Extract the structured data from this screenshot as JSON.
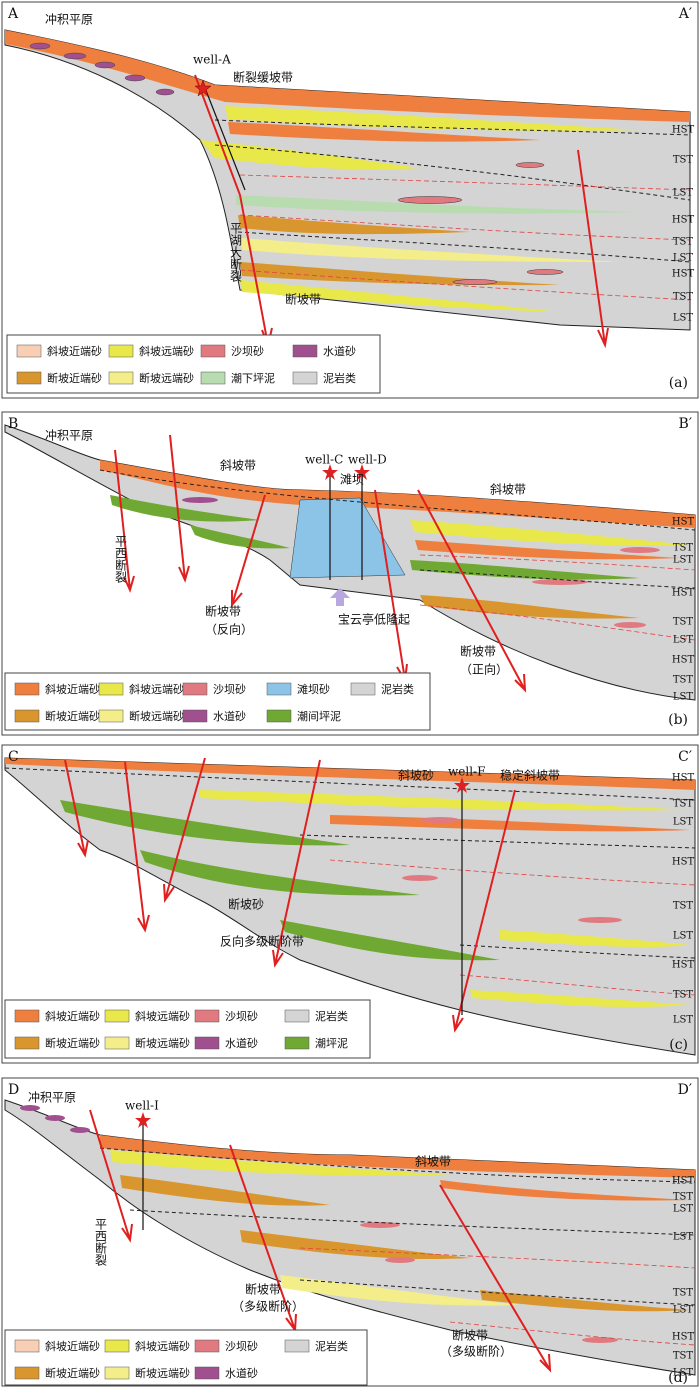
{
  "panels": [
    {
      "corner_left": "A",
      "corner_right": "A′",
      "tag": "(a)",
      "labels": [
        "冲积平原",
        "well-A",
        "断裂缓坡带",
        "平湖大断裂",
        "断坡带"
      ],
      "sequence": [
        "HST",
        "TST",
        "LST",
        "HST",
        "TST",
        "LST",
        "HST",
        "TST",
        "LST"
      ],
      "legend": [
        {
          "label": "斜坡近端砂",
          "color": "#f8cfb4"
        },
        {
          "label": "斜坡远端砂",
          "color": "#e8e84a"
        },
        {
          "label": "沙坝砂",
          "color": "#e07a80"
        },
        {
          "label": "水道砂",
          "color": "#a0508e"
        },
        {
          "label": "断坡近端砂",
          "color": "#d9962e"
        },
        {
          "label": "断坡远端砂",
          "color": "#f4ee8a"
        },
        {
          "label": "潮下坪泥",
          "color": "#b8dcb0"
        },
        {
          "label": "泥岩类",
          "color": "#d4d4d4"
        }
      ]
    },
    {
      "corner_left": "B",
      "corner_right": "B′",
      "tag": "(b)",
      "labels": [
        "冲积平原",
        "斜坡带",
        "well-C",
        "well-D",
        "滩坝",
        "斜坡带",
        "平西断裂",
        "断坡带",
        "（反向）",
        "宝云亭低隆起",
        "断坡带",
        "（正向）"
      ],
      "sequence": [
        "HST",
        "TST",
        "LST",
        "HST",
        "TST",
        "LST",
        "HST",
        "TST",
        "LST"
      ],
      "legend": [
        {
          "label": "斜坡近端砂",
          "color": "#ef7f3e"
        },
        {
          "label": "斜坡远端砂",
          "color": "#e8e84a"
        },
        {
          "label": "沙坝砂",
          "color": "#e07a80"
        },
        {
          "label": "滩坝砂",
          "color": "#8cc4e8"
        },
        {
          "label": "泥岩类",
          "color": "#d4d4d4"
        },
        {
          "label": "断坡近端砂",
          "color": "#d9962e"
        },
        {
          "label": "断坡远端砂",
          "color": "#f4ee8a"
        },
        {
          "label": "水道砂",
          "color": "#a0508e"
        },
        {
          "label": "潮间坪泥",
          "color": "#6fa832"
        }
      ]
    },
    {
      "corner_left": "C",
      "corner_right": "C′",
      "tag": "(c)",
      "labels": [
        "斜坡砂",
        "well-F",
        "稳定斜坡带",
        "断坡砂",
        "反向多级断阶带"
      ],
      "sequence": [
        "HST",
        "TST",
        "LST",
        "HST",
        "TST",
        "LST",
        "HST",
        "TST",
        "LST"
      ],
      "legend": [
        {
          "label": "斜坡近端砂",
          "color": "#ef7f3e"
        },
        {
          "label": "斜坡远端砂",
          "color": "#e8e84a"
        },
        {
          "label": "沙坝砂",
          "color": "#e07a80"
        },
        {
          "label": "泥岩类",
          "color": "#d4d4d4"
        },
        {
          "label": "断坡近端砂",
          "color": "#d9962e"
        },
        {
          "label": "断坡远端砂",
          "color": "#f4ee8a"
        },
        {
          "label": "水道砂",
          "color": "#a0508e"
        },
        {
          "label": "潮坪泥",
          "color": "#6fa832"
        }
      ]
    },
    {
      "corner_left": "D",
      "corner_right": "D′",
      "tag": "(d)",
      "labels": [
        "冲积平原",
        "well-I",
        "斜坡带",
        "平西断裂",
        "断坡带",
        "（多级断阶）",
        "断坡带",
        "（多级断阶）"
      ],
      "sequence": [
        "HST",
        "TST",
        "LST",
        "LST",
        "TST",
        "LST",
        "HST",
        "TST",
        "LST"
      ],
      "legend": [
        {
          "label": "斜坡近端砂",
          "color": "#f8cfb4"
        },
        {
          "label": "斜坡远端砂",
          "color": "#e8e84a"
        },
        {
          "label": "沙坝砂",
          "color": "#e07a80"
        },
        {
          "label": "泥岩类",
          "color": "#d4d4d4"
        },
        {
          "label": "断坡近端砂",
          "color": "#d9962e"
        },
        {
          "label": "断坡远端砂",
          "color": "#f4ee8a"
        },
        {
          "label": "水道砂",
          "color": "#a0508e"
        }
      ]
    }
  ]
}
